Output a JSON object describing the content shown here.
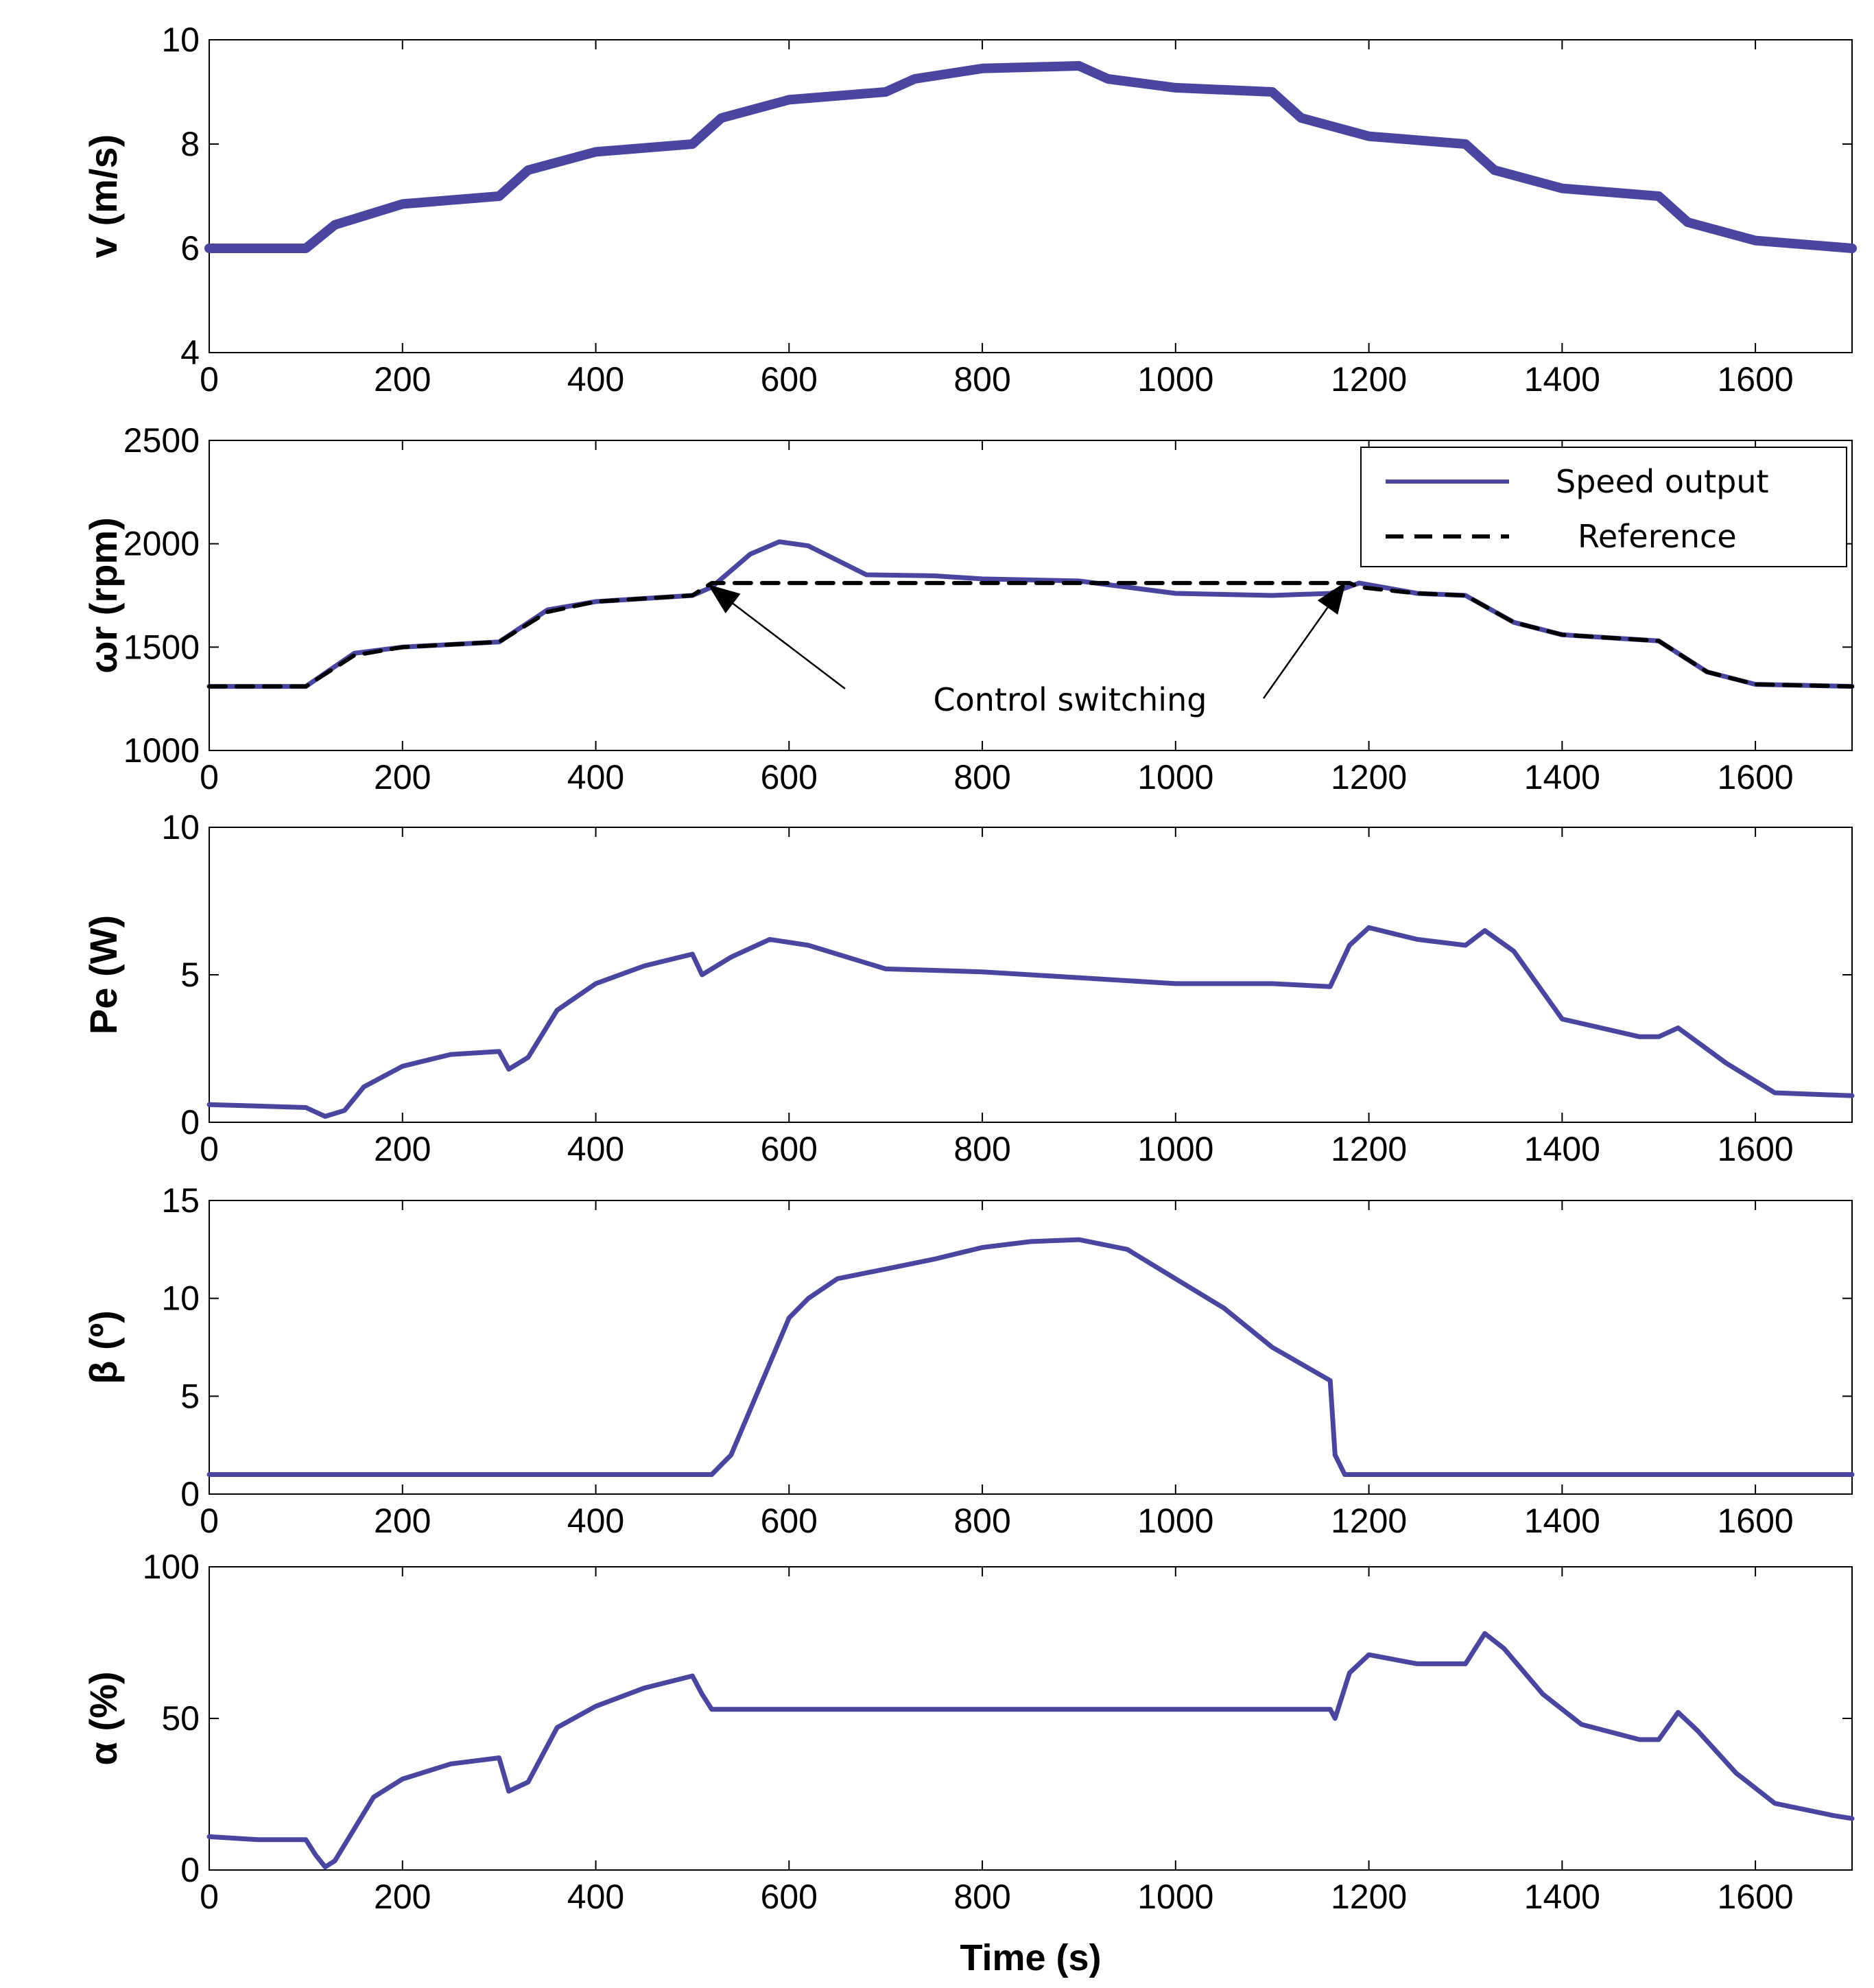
{
  "figure": {
    "xlabel": "Time (s)",
    "x_ticks": [
      0,
      200,
      400,
      600,
      800,
      1000,
      1200,
      1400,
      1600
    ],
    "xlim": [
      0,
      1700
    ],
    "line_color": "#4a46a0",
    "ref_color": "#000000"
  },
  "chart_data": [
    {
      "type": "line",
      "id": "wind-speed",
      "ylabel": "v (m/s)",
      "ylim": [
        4,
        10
      ],
      "y_ticks": [
        4,
        6,
        8,
        10
      ],
      "series": [
        {
          "name": "v",
          "x": [
            0,
            100,
            130,
            200,
            300,
            330,
            400,
            500,
            530,
            600,
            700,
            730,
            800,
            900,
            930,
            1000,
            1100,
            1130,
            1200,
            1300,
            1330,
            1400,
            1500,
            1530,
            1600,
            1700
          ],
          "y": [
            6,
            6,
            6.45,
            6.85,
            7,
            7.5,
            7.85,
            8,
            8.5,
            8.85,
            9,
            9.25,
            9.45,
            9.5,
            9.25,
            9.08,
            9,
            8.5,
            8.15,
            8,
            7.5,
            7.15,
            7,
            6.5,
            6.15,
            6
          ]
        }
      ]
    },
    {
      "type": "line",
      "id": "rotor-speed",
      "ylabel": "ωr (rpm)",
      "ylim": [
        1000,
        2500
      ],
      "y_ticks": [
        1000,
        1500,
        2000,
        2500
      ],
      "legend": [
        "Speed output",
        "Reference"
      ],
      "legend_position": "top-right",
      "annotation": "Control switching",
      "series": [
        {
          "name": "Speed output",
          "x": [
            0,
            100,
            150,
            200,
            300,
            350,
            400,
            500,
            520,
            560,
            590,
            620,
            680,
            750,
            800,
            900,
            1000,
            1100,
            1160,
            1190,
            1250,
            1300,
            1350,
            1400,
            1500,
            1550,
            1600,
            1700
          ],
          "y": [
            1310,
            1310,
            1470,
            1500,
            1525,
            1680,
            1720,
            1750,
            1790,
            1950,
            2010,
            1990,
            1850,
            1845,
            1830,
            1820,
            1760,
            1750,
            1760,
            1810,
            1760,
            1750,
            1620,
            1560,
            1530,
            1380,
            1320,
            1310
          ]
        },
        {
          "name": "Reference",
          "x": [
            0,
            100,
            150,
            200,
            300,
            350,
            400,
            500,
            520,
            1180,
            1190,
            1250,
            1300,
            1350,
            1400,
            1500,
            1550,
            1600,
            1700
          ],
          "y": [
            1310,
            1310,
            1460,
            1500,
            1525,
            1670,
            1720,
            1750,
            1810,
            1810,
            1790,
            1760,
            1750,
            1620,
            1560,
            1530,
            1380,
            1320,
            1310
          ]
        }
      ]
    },
    {
      "type": "line",
      "id": "power",
      "ylabel": "Pe (W)",
      "ylim": [
        0,
        10
      ],
      "y_ticks": [
        0,
        5,
        10
      ],
      "series": [
        {
          "name": "Pe",
          "x": [
            0,
            100,
            120,
            140,
            160,
            200,
            250,
            300,
            310,
            330,
            360,
            400,
            450,
            500,
            510,
            540,
            580,
            620,
            700,
            800,
            900,
            1000,
            1100,
            1160,
            1180,
            1200,
            1250,
            1300,
            1320,
            1350,
            1400,
            1480,
            1500,
            1520,
            1570,
            1620,
            1700
          ],
          "y": [
            0.6,
            0.5,
            0.2,
            0.4,
            1.2,
            1.9,
            2.3,
            2.4,
            1.8,
            2.2,
            3.8,
            4.7,
            5.3,
            5.7,
            5.0,
            5.6,
            6.2,
            6.0,
            5.2,
            5.1,
            4.9,
            4.7,
            4.7,
            4.6,
            6.0,
            6.6,
            6.2,
            6.0,
            6.5,
            5.8,
            3.5,
            2.9,
            2.9,
            3.2,
            2.0,
            1.0,
            0.9
          ]
        }
      ]
    },
    {
      "type": "line",
      "id": "pitch",
      "ylabel": "β (º)",
      "ylim": [
        0,
        15
      ],
      "y_ticks": [
        0,
        5,
        10,
        15
      ],
      "series": [
        {
          "name": "β",
          "x": [
            0,
            520,
            540,
            570,
            600,
            620,
            650,
            700,
            750,
            800,
            850,
            900,
            950,
            1000,
            1050,
            1100,
            1160,
            1165,
            1175,
            1700
          ],
          "y": [
            1,
            1,
            2,
            5.5,
            9,
            10,
            11,
            11.5,
            12,
            12.6,
            12.9,
            13,
            12.5,
            11,
            9.5,
            7.5,
            5.8,
            2,
            1,
            1
          ]
        }
      ]
    },
    {
      "type": "line",
      "id": "duty-cycle",
      "ylabel": "α (%)",
      "ylim": [
        0,
        100
      ],
      "y_ticks": [
        0,
        50,
        100
      ],
      "series": [
        {
          "name": "α",
          "x": [
            0,
            50,
            100,
            110,
            120,
            130,
            170,
            200,
            250,
            300,
            310,
            330,
            360,
            400,
            450,
            500,
            510,
            520,
            1160,
            1165,
            1180,
            1200,
            1250,
            1300,
            1320,
            1340,
            1380,
            1420,
            1480,
            1500,
            1520,
            1540,
            1580,
            1620,
            1680,
            1700
          ],
          "y": [
            11,
            10,
            10,
            5,
            1,
            3,
            24,
            30,
            35,
            37,
            26,
            29,
            47,
            54,
            60,
            64,
            58,
            53,
            53,
            50,
            65,
            71,
            68,
            68,
            78,
            73,
            58,
            48,
            43,
            43,
            52,
            46,
            32,
            22,
            18,
            17
          ]
        }
      ]
    }
  ]
}
